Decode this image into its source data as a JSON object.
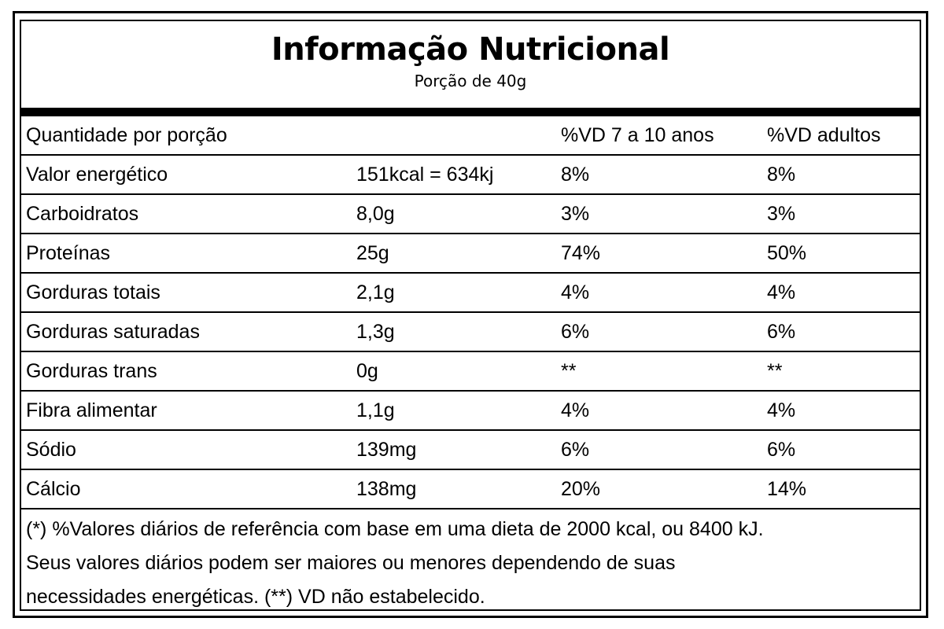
{
  "label": {
    "title": "Informação Nutricional",
    "subtitle": "Porção de 40g"
  },
  "table": {
    "headers": [
      "Quantidade por porção",
      "",
      "%VD 7 a 10 anos",
      "%VD adultos"
    ],
    "rows": [
      [
        "Valor energético",
        "151kcal = 634kj",
        "8%",
        "8%"
      ],
      [
        "Carboidratos",
        "8,0g",
        "3%",
        "3%"
      ],
      [
        "Proteínas",
        "25g",
        "74%",
        "50%"
      ],
      [
        "Gorduras totais",
        "2,1g",
        "4%",
        "4%"
      ],
      [
        "Gorduras saturadas",
        "1,3g",
        "6%",
        "6%"
      ],
      [
        "Gorduras trans",
        "0g",
        "**",
        "**"
      ],
      [
        "Fibra alimentar",
        "1,1g",
        "4%",
        "4%"
      ],
      [
        "Sódio",
        "139mg",
        "6%",
        "6%"
      ],
      [
        "Cálcio",
        "138mg",
        "20%",
        "14%"
      ]
    ]
  },
  "footnote": {
    "lines": [
      "(*) %Valores diários de referência com base em uma dieta de 2000 kcal, ou 8400 kJ.",
      "Seus valores diários podem ser maiores ou menores dependendo de suas",
      "necessidades energéticas. (**) VD não estabelecido."
    ]
  }
}
